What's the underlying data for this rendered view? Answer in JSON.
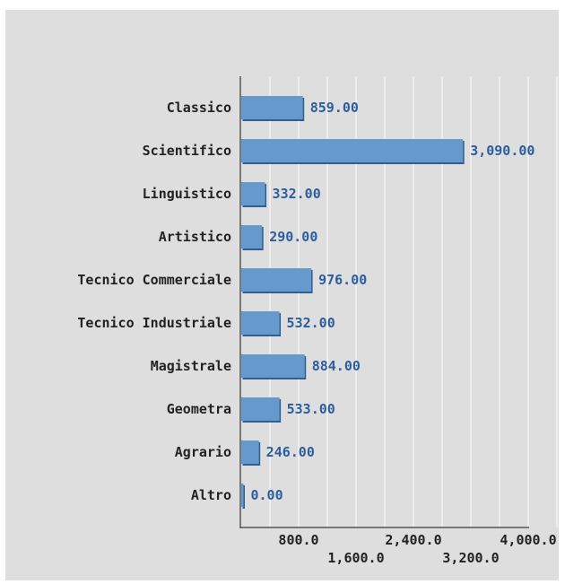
{
  "chart_data": {
    "type": "bar",
    "orientation": "horizontal",
    "categories": [
      "Classico",
      "Scientifico",
      "Linguistico",
      "Artistico",
      "Tecnico Commerciale",
      "Tecnico Industriale",
      "Magistrale",
      "Geometra",
      "Agrario",
      "Altro"
    ],
    "values": [
      859,
      3090,
      332,
      290,
      976,
      532,
      884,
      533,
      246,
      0
    ],
    "value_labels": [
      "859.00",
      "3,090.00",
      "332.00",
      "290.00",
      "976.00",
      "532.00",
      "884.00",
      "533.00",
      "246.00",
      "0.00"
    ],
    "xlim": [
      0,
      4800
    ],
    "x_ticks": [
      {
        "value": 800,
        "label": "800.0"
      },
      {
        "value": 1600,
        "label": "1,600.0"
      },
      {
        "value": 2400,
        "label": "2,400.0"
      },
      {
        "value": 3200,
        "label": "3,200.0"
      },
      {
        "value": 4000,
        "label": "4,000.0"
      }
    ],
    "grid": true,
    "legend": "none",
    "bar_color": "#6699cc",
    "bar_dark_color": "#2f5f92",
    "label_color": "#2a5e9e",
    "background": "#dedede"
  }
}
